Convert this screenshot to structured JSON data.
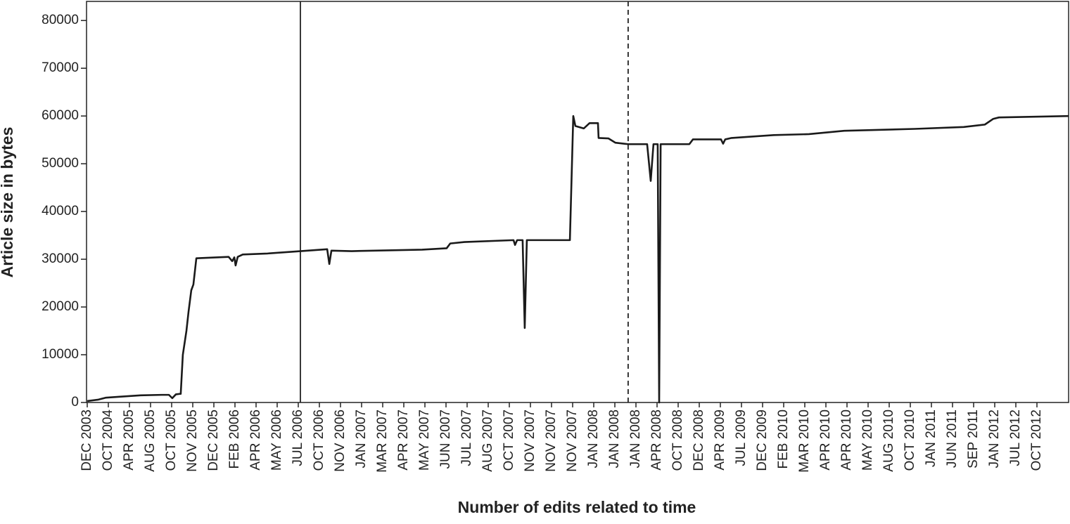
{
  "chart_data": {
    "type": "line",
    "x_label": "Number of edits related to time",
    "y_label": "Article size in bytes",
    "color": "#1a1a1a",
    "x": [
      0,
      0.53,
      0.87,
      1.53,
      2.53,
      3.53,
      3.87,
      4.03,
      4.2,
      4.37,
      4.43,
      4.53,
      4.7,
      4.8,
      4.93,
      5.03,
      5.17,
      6.7,
      6.87,
      6.97,
      7.03,
      7.13,
      7.37,
      8.53,
      10.1,
      11.37,
      11.47,
      11.57,
      12.53,
      15.87,
      17.03,
      17.2,
      17.87,
      20.2,
      20.27,
      20.37,
      20.63,
      20.73,
      20.83,
      22.87,
      23.03,
      23.13,
      23.53,
      23.8,
      24.2,
      24.23,
      24.7,
      25.03,
      25.63,
      26.53,
      26.7,
      26.83,
      27.03,
      27.1,
      27.17,
      28.53,
      28.7,
      30.03,
      30.13,
      30.23,
      30.53,
      32.53,
      34.2,
      35.87,
      39.2,
      41.53,
      42.53,
      42.93,
      43.2,
      46.5
    ],
    "values": [
      300,
      600,
      1000,
      1200,
      1500,
      1600,
      1600,
      900,
      1700,
      1800,
      1800,
      10000,
      15000,
      19000,
      23500,
      24700,
      30200,
      30500,
      29600,
      30400,
      28700,
      30500,
      31000,
      31200,
      31700,
      32100,
      29000,
      31800,
      31700,
      32000,
      32300,
      33300,
      33600,
      34000,
      33000,
      34000,
      34000,
      15600,
      34000,
      34000,
      60000,
      57900,
      57400,
      58500,
      58500,
      55400,
      55300,
      54400,
      54100,
      54100,
      46400,
      54100,
      54100,
      0,
      54100,
      54100,
      55100,
      55100,
      54200,
      55100,
      55400,
      56000,
      56200,
      56900,
      57300,
      57700,
      58200,
      59400,
      59700,
      60000
    ],
    "xlim": [
      0,
      46.5
    ],
    "xticks": [
      {
        "value": 0,
        "label": "DEC 2003"
      },
      {
        "value": 1,
        "label": "OCT 2004"
      },
      {
        "value": 2,
        "label": "APR 2005"
      },
      {
        "value": 3,
        "label": "AUG 2005"
      },
      {
        "value": 4,
        "label": "OCT 2005"
      },
      {
        "value": 5,
        "label": "NOV 2005"
      },
      {
        "value": 6,
        "label": "DEC 2005"
      },
      {
        "value": 7,
        "label": "FEB 2006"
      },
      {
        "value": 8,
        "label": "APR 2006"
      },
      {
        "value": 9,
        "label": "MAY 2006"
      },
      {
        "value": 10,
        "label": "JUL 2006"
      },
      {
        "value": 11,
        "label": "OCT 2006"
      },
      {
        "value": 12,
        "label": "NOV 2006"
      },
      {
        "value": 13,
        "label": "JAN 2007"
      },
      {
        "value": 14,
        "label": "MAR 2007"
      },
      {
        "value": 15,
        "label": "APR 2007"
      },
      {
        "value": 16,
        "label": "MAY 2007"
      },
      {
        "value": 17,
        "label": "JUN 2007"
      },
      {
        "value": 18,
        "label": "JUL 2007"
      },
      {
        "value": 19,
        "label": "AUG 2007"
      },
      {
        "value": 20,
        "label": "OCT 2007"
      },
      {
        "value": 21,
        "label": "NOV 2007"
      },
      {
        "value": 22,
        "label": "NOV 2007"
      },
      {
        "value": 23,
        "label": "NOV 2007"
      },
      {
        "value": 24,
        "label": "JAN 2008"
      },
      {
        "value": 25,
        "label": "JAN 2008"
      },
      {
        "value": 26,
        "label": "JAN 2008"
      },
      {
        "value": 27,
        "label": "APR 2008"
      },
      {
        "value": 28,
        "label": "OCT 2008"
      },
      {
        "value": 29,
        "label": "DEC 2008"
      },
      {
        "value": 30,
        "label": "APR 2009"
      },
      {
        "value": 31,
        "label": "JUL 2009"
      },
      {
        "value": 32,
        "label": "DEC 2009"
      },
      {
        "value": 33,
        "label": "FEB 2010"
      },
      {
        "value": 34,
        "label": "MAR 2010"
      },
      {
        "value": 35,
        "label": "APR 2010"
      },
      {
        "value": 36,
        "label": "APR 2010"
      },
      {
        "value": 37,
        "label": "MAY 2010"
      },
      {
        "value": 38,
        "label": "AUG 2010"
      },
      {
        "value": 39,
        "label": "OCT 2010"
      },
      {
        "value": 40,
        "label": "JAN 2011"
      },
      {
        "value": 41,
        "label": "JUN 2011"
      },
      {
        "value": 42,
        "label": "SEP 2011"
      },
      {
        "value": 43,
        "label": "JAN 2012"
      },
      {
        "value": 44,
        "label": "JUL 2012"
      },
      {
        "value": 45,
        "label": "OCT 2012"
      }
    ],
    "ylim": [
      0,
      84000
    ],
    "yticks": [
      0,
      10000,
      20000,
      30000,
      40000,
      50000,
      60000,
      70000,
      80000
    ],
    "vlines": [
      {
        "x": 10.1,
        "style": "solid"
      },
      {
        "x": 25.63,
        "style": "dashed"
      }
    ]
  }
}
